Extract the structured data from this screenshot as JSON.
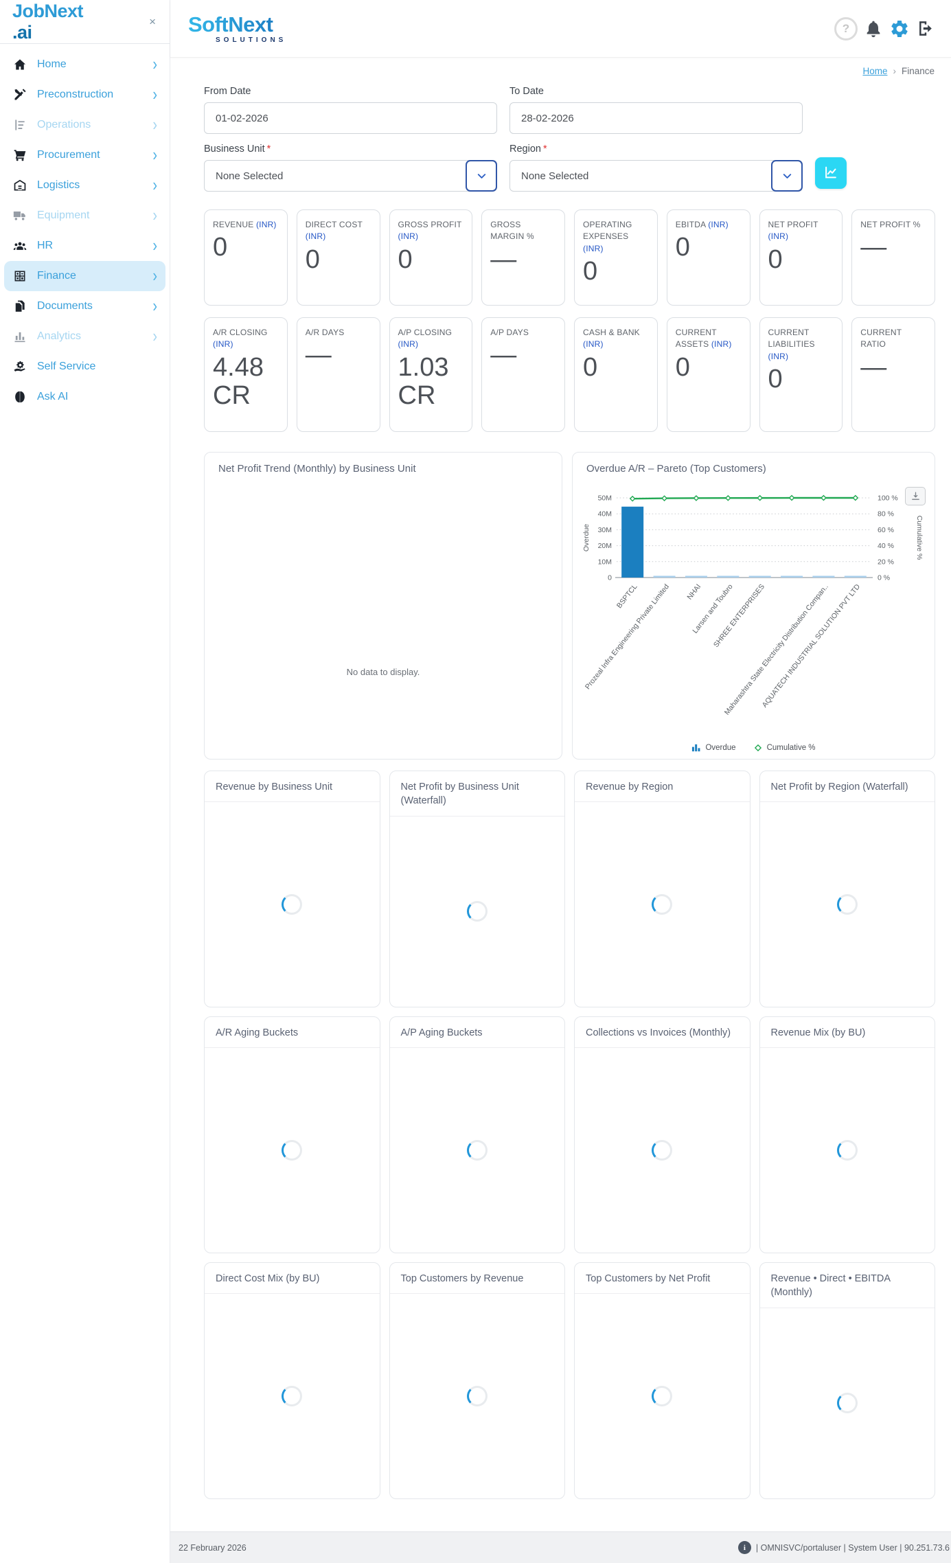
{
  "colors": {
    "brand_blue": "#2d9bd6",
    "nav_blue": "#3aa0db",
    "nav_disabled": "#a6d6f1",
    "active_item_bg": "#d7edfa",
    "inr_blue": "#2456c5",
    "accent_cyan": "#2bd7f4",
    "bar_primary": "#1b7fc0",
    "bar_secondary": "#a9cfeb",
    "cumulative_green": "#21a852"
  },
  "sidebar": {
    "logo_main": "JobNext",
    "logo_suffix": ".ai",
    "close_glyph": "×",
    "items": [
      {
        "label": "Home",
        "icon": "home-icon",
        "disabled": false,
        "active": false,
        "chevron": true
      },
      {
        "label": "Preconstruction",
        "icon": "preconstruction-icon",
        "disabled": false,
        "active": false,
        "chevron": true
      },
      {
        "label": "Operations",
        "icon": "operations-icon",
        "disabled": true,
        "active": false,
        "chevron": true
      },
      {
        "label": "Procurement",
        "icon": "procurement-icon",
        "disabled": false,
        "active": false,
        "chevron": true
      },
      {
        "label": "Logistics",
        "icon": "logistics-icon",
        "disabled": false,
        "active": false,
        "chevron": true
      },
      {
        "label": "Equipment",
        "icon": "equipment-icon",
        "disabled": true,
        "active": false,
        "chevron": true
      },
      {
        "label": "HR",
        "icon": "hr-icon",
        "disabled": false,
        "active": false,
        "chevron": true
      },
      {
        "label": "Finance",
        "icon": "finance-icon",
        "disabled": false,
        "active": true,
        "chevron": true
      },
      {
        "label": "Documents",
        "icon": "documents-icon",
        "disabled": false,
        "active": false,
        "chevron": true
      },
      {
        "label": "Analytics",
        "icon": "analytics-icon",
        "disabled": true,
        "active": false,
        "chevron": true
      },
      {
        "label": "Self Service",
        "icon": "self-service-icon",
        "disabled": false,
        "active": false,
        "chevron": false
      },
      {
        "label": "Ask AI",
        "icon": "ask-ai-icon",
        "disabled": false,
        "active": false,
        "chevron": false
      }
    ]
  },
  "header": {
    "logo_main": "SoftNext",
    "logo_sub": "SOLUTIONS",
    "avatar_glyph": "?"
  },
  "breadcrumb": {
    "home": "Home",
    "separator": "›",
    "current": "Finance"
  },
  "filters": {
    "from_date": {
      "label": "From Date",
      "value": "01-02-2026"
    },
    "to_date": {
      "label": "To Date",
      "value": "28-02-2026"
    },
    "business_unit": {
      "label": "Business Unit",
      "required_mark": "*",
      "value": "None Selected"
    },
    "region": {
      "label": "Region",
      "required_mark": "*",
      "value": "None Selected"
    }
  },
  "kpis": {
    "row1": [
      {
        "label": "REVENUE",
        "unit": "(INR)",
        "value": "0"
      },
      {
        "label": "DIRECT COST",
        "unit": "(INR)",
        "value": "0"
      },
      {
        "label": "GROSS PROFIT",
        "unit": "(INR)",
        "value": "0"
      },
      {
        "label": "GROSS MARGIN %",
        "unit": "",
        "value": "—"
      },
      {
        "label": "OPERATING EXPENSES",
        "unit": "(INR)",
        "value": "0"
      },
      {
        "label": "EBITDA",
        "unit": "(INR)",
        "value": "0"
      },
      {
        "label": "NET PROFIT",
        "unit": "(INR)",
        "value": "0"
      },
      {
        "label": "NET PROFIT %",
        "unit": "",
        "value": "—"
      }
    ],
    "row2": [
      {
        "label": "A/R CLOSING",
        "unit": "(INR)",
        "value": "4.48 CR"
      },
      {
        "label": "A/R DAYS",
        "unit": "",
        "value": "—"
      },
      {
        "label": "A/P CLOSING",
        "unit": "(INR)",
        "value": "1.03 CR"
      },
      {
        "label": "A/P DAYS",
        "unit": "",
        "value": "—"
      },
      {
        "label": "CASH & BANK",
        "unit": "(INR)",
        "value": "0"
      },
      {
        "label": "CURRENT ASSETS",
        "unit": "(INR)",
        "value": "0"
      },
      {
        "label": "CURRENT LIABILITIES",
        "unit": "(INR)",
        "value": "0"
      },
      {
        "label": "CURRENT RATIO",
        "unit": "",
        "value": "—"
      }
    ]
  },
  "trend_panel": {
    "title": "Net Profit Trend (Monthly) by Business Unit",
    "empty_message": "No data to display."
  },
  "chart_data": {
    "type": "bar",
    "subtype": "pareto-combo",
    "title": "Overdue A/R – Pareto (Top Customers)",
    "categories": [
      "BSPTCL",
      "Prozeal Infra Engineering Private Limited",
      "NHAI",
      "Larsen and Toubro",
      "SHREE ENTERPRISES",
      "",
      "Maharashtra State Electricity Distribution Compan..",
      "AQUATECH INDUSTRIAL SOLUTION PVT LTD"
    ],
    "series": [
      {
        "name": "Overdue",
        "type": "bar",
        "axis": "left",
        "values": [
          44500000,
          1000000,
          1000000,
          1000000,
          1000000,
          1000000,
          1000000,
          1000000
        ]
      },
      {
        "name": "Cumulative %",
        "type": "line",
        "axis": "right",
        "values": [
          99,
          99.5,
          99.7,
          99.8,
          99.9,
          100,
          100,
          100
        ]
      }
    ],
    "y_left": {
      "label": "Overdue",
      "min": 0,
      "max": 50000000,
      "ticks": [
        "0",
        "10M",
        "20M",
        "30M",
        "40M",
        "50M"
      ]
    },
    "y_right": {
      "label": "Cumulative %",
      "min": 0,
      "max": 100,
      "ticks": [
        "0 %",
        "20 %",
        "40 %",
        "60 %",
        "80 %",
        "100 %"
      ]
    },
    "grid": "dotted-horizontal",
    "legend_position": "bottom",
    "legend": [
      {
        "label": "Overdue",
        "marker": "bar"
      },
      {
        "label": "Cumulative %",
        "marker": "diamond"
      }
    ]
  },
  "loading_cards": [
    {
      "title": "Revenue by Business Unit"
    },
    {
      "title": "Net Profit by Business Unit (Waterfall)"
    },
    {
      "title": "Revenue by Region"
    },
    {
      "title": "Net Profit by Region (Waterfall)"
    },
    {
      "title": "A/R Aging Buckets"
    },
    {
      "title": "A/P Aging Buckets"
    },
    {
      "title": "Collections vs Invoices (Monthly)"
    },
    {
      "title": "Revenue Mix (by BU)"
    },
    {
      "title": "Direct Cost Mix (by BU)"
    },
    {
      "title": "Top Customers by Revenue"
    },
    {
      "title": "Top Customers by Net Profit"
    },
    {
      "title": "Revenue • Direct • EBITDA (Monthly)"
    }
  ],
  "footer": {
    "date": "22 February 2026",
    "session": "| OMNISVC/portaluser | System User | 90.251.73.6"
  }
}
